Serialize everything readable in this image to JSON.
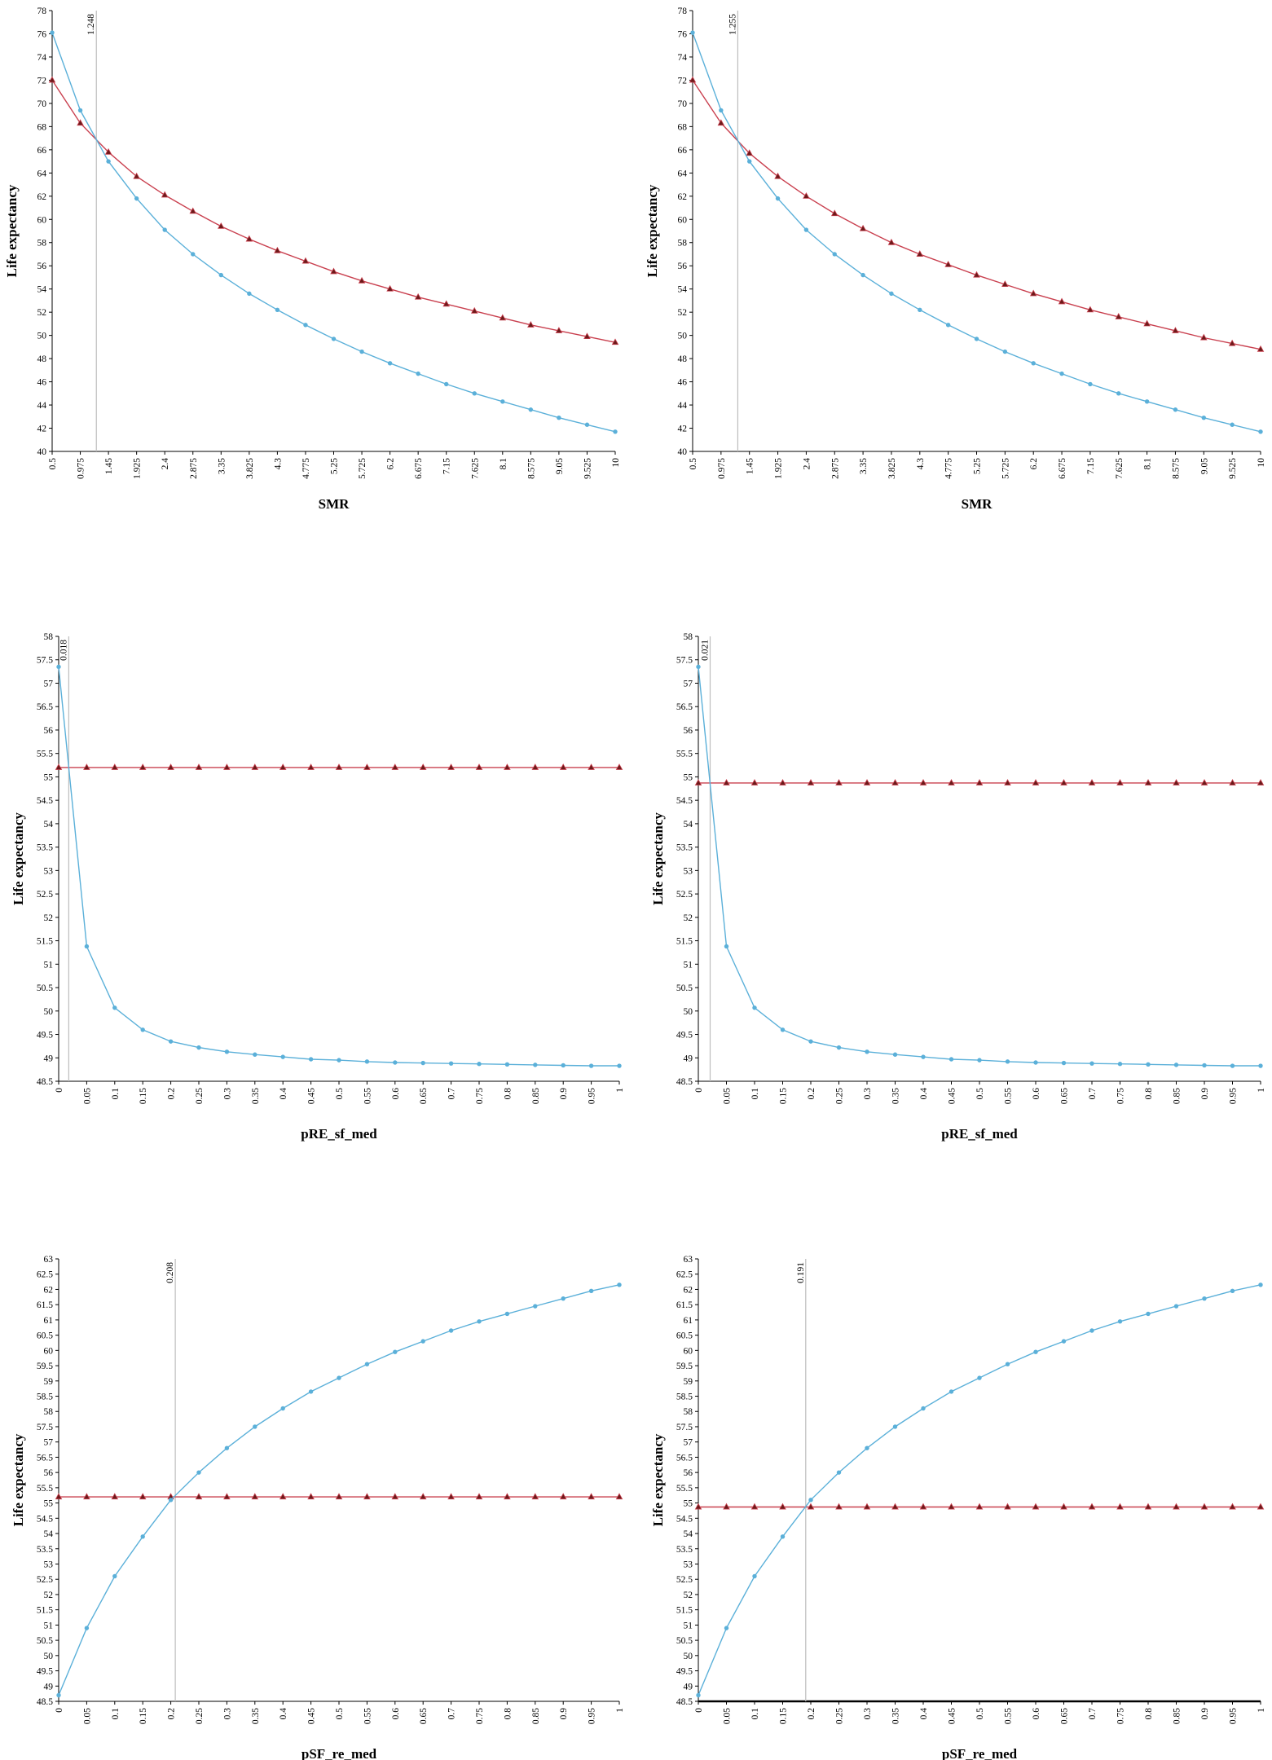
{
  "colors": {
    "series_blue": "#5bb0d9",
    "series_red": "#c9404f",
    "marker_red_fill": "#6b1a1a",
    "threshold_line": "#bdbdbd",
    "axis": "#000000"
  },
  "chart_data": [
    {
      "type": "line",
      "ylabel": "Life expectancy",
      "xlabel": "SMR",
      "x_ticks": [
        "0.5",
        "0.975",
        "1.45",
        "1.925",
        "2.4",
        "2.875",
        "3.35",
        "3.825",
        "4.3",
        "4.775",
        "5.25",
        "5.725",
        "6.2",
        "6.675",
        "7.15",
        "7.625",
        "8.1",
        "8.575",
        "9.05",
        "9.525",
        "10"
      ],
      "ylim": [
        40,
        78
      ],
      "y_tick_step": 2,
      "vline": {
        "x_index": 1.57,
        "label": "1.248"
      },
      "series": [
        {
          "values": [
            76.1,
            69.4,
            65.0,
            61.8,
            59.1,
            57.0,
            55.2,
            53.6,
            52.2,
            50.9,
            49.7,
            48.6,
            47.6,
            46.7,
            45.8,
            45.0,
            44.3,
            43.6,
            42.9,
            42.3,
            41.7
          ],
          "marker": "circle",
          "color": "#5bb0d9"
        },
        {
          "values": [
            72.0,
            68.3,
            65.8,
            63.7,
            62.1,
            60.7,
            59.4,
            58.3,
            57.3,
            56.4,
            55.5,
            54.7,
            54.0,
            53.3,
            52.7,
            52.1,
            51.5,
            50.9,
            50.4,
            49.9,
            49.4
          ],
          "marker": "triangle",
          "color": "#c9404f"
        }
      ]
    },
    {
      "type": "line",
      "ylabel": "Life expectancy",
      "xlabel": "SMR",
      "x_ticks": [
        "0.5",
        "0.975",
        "1.45",
        "1.925",
        "2.4",
        "2.875",
        "3.35",
        "3.825",
        "4.3",
        "4.775",
        "5.25",
        "5.725",
        "6.2",
        "6.675",
        "7.15",
        "7.625",
        "8.1",
        "8.575",
        "9.05",
        "9.525",
        "10"
      ],
      "ylim": [
        40,
        78
      ],
      "y_tick_step": 2,
      "vline": {
        "x_index": 1.59,
        "label": "1.255"
      },
      "series": [
        {
          "values": [
            76.1,
            69.4,
            65.0,
            61.8,
            59.1,
            57.0,
            55.2,
            53.6,
            52.2,
            50.9,
            49.7,
            48.6,
            47.6,
            46.7,
            45.8,
            45.0,
            44.3,
            43.6,
            42.9,
            42.3,
            41.7
          ],
          "marker": "circle",
          "color": "#5bb0d9"
        },
        {
          "values": [
            72.0,
            68.3,
            65.7,
            63.7,
            62.0,
            60.5,
            59.2,
            58.0,
            57.0,
            56.1,
            55.2,
            54.4,
            53.6,
            52.9,
            52.2,
            51.6,
            51.0,
            50.4,
            49.8,
            49.3,
            48.8
          ],
          "marker": "triangle",
          "color": "#c9404f"
        }
      ]
    },
    {
      "type": "line",
      "ylabel": "Life expectancy",
      "xlabel": "pRE_sf_med",
      "x_ticks": [
        "0",
        "0.05",
        "0.1",
        "0.15",
        "0.2",
        "0.25",
        "0.3",
        "0.35",
        "0.4",
        "0.45",
        "0.5",
        "0.55",
        "0.6",
        "0.65",
        "0.7",
        "0.75",
        "0.8",
        "0.85",
        "0.9",
        "0.95",
        "1"
      ],
      "ylim": [
        48.5,
        58
      ],
      "y_tick_step": 0.5,
      "vline": {
        "x_index": 0.36,
        "label": "0.018"
      },
      "series": [
        {
          "values": [
            57.35,
            51.38,
            50.07,
            49.6,
            49.35,
            49.22,
            49.13,
            49.07,
            49.02,
            48.97,
            48.95,
            48.92,
            48.9,
            48.89,
            48.88,
            48.87,
            48.86,
            48.85,
            48.84,
            48.83,
            48.83
          ],
          "marker": "circle",
          "color": "#5bb0d9"
        },
        {
          "values": [
            55.2,
            55.2,
            55.2,
            55.2,
            55.2,
            55.2,
            55.2,
            55.2,
            55.2,
            55.2,
            55.2,
            55.2,
            55.2,
            55.2,
            55.2,
            55.2,
            55.2,
            55.2,
            55.2,
            55.2,
            55.2
          ],
          "marker": "triangle",
          "color": "#c9404f"
        }
      ]
    },
    {
      "type": "line",
      "ylabel": "Life expectancy",
      "xlabel": "pRE_sf_med",
      "x_ticks": [
        "0",
        "0.05",
        "0.1",
        "0.15",
        "0.2",
        "0.25",
        "0.3",
        "0.35",
        "0.4",
        "0.45",
        "0.5",
        "0.55",
        "0.6",
        "0.65",
        "0.7",
        "0.75",
        "0.8",
        "0.85",
        "0.9",
        "0.95",
        "1"
      ],
      "ylim": [
        48.5,
        58
      ],
      "y_tick_step": 0.5,
      "vline": {
        "x_index": 0.42,
        "label": "0.021"
      },
      "series": [
        {
          "values": [
            57.35,
            51.38,
            50.07,
            49.6,
            49.35,
            49.22,
            49.13,
            49.07,
            49.02,
            48.97,
            48.95,
            48.92,
            48.9,
            48.89,
            48.88,
            48.87,
            48.86,
            48.85,
            48.84,
            48.83,
            48.83
          ],
          "marker": "circle",
          "color": "#5bb0d9"
        },
        {
          "values": [
            54.87,
            54.87,
            54.87,
            54.87,
            54.87,
            54.87,
            54.87,
            54.87,
            54.87,
            54.87,
            54.87,
            54.87,
            54.87,
            54.87,
            54.87,
            54.87,
            54.87,
            54.87,
            54.87,
            54.87,
            54.87
          ],
          "marker": "triangle",
          "color": "#c9404f"
        }
      ]
    },
    {
      "type": "line",
      "ylabel": "Life expectancy",
      "xlabel": "pSF_re_med",
      "x_ticks": [
        "0",
        "0.05",
        "0.1",
        "0.15",
        "0.2",
        "0.25",
        "0.3",
        "0.35",
        "0.4",
        "0.45",
        "0.5",
        "0.55",
        "0.6",
        "0.65",
        "0.7",
        "0.75",
        "0.8",
        "0.85",
        "0.9",
        "0.95",
        "1"
      ],
      "ylim": [
        48.5,
        63
      ],
      "y_tick_step": 0.5,
      "vline": {
        "x_index": 4.16,
        "label": "0.208"
      },
      "series": [
        {
          "values": [
            48.7,
            50.9,
            52.6,
            53.9,
            55.1,
            56.0,
            56.8,
            57.5,
            58.1,
            58.65,
            59.1,
            59.55,
            59.95,
            60.3,
            60.65,
            60.95,
            61.2,
            61.45,
            61.7,
            61.95,
            62.15
          ],
          "marker": "circle",
          "color": "#5bb0d9"
        },
        {
          "values": [
            55.2,
            55.2,
            55.2,
            55.2,
            55.2,
            55.2,
            55.2,
            55.2,
            55.2,
            55.2,
            55.2,
            55.2,
            55.2,
            55.2,
            55.2,
            55.2,
            55.2,
            55.2,
            55.2,
            55.2,
            55.2
          ],
          "marker": "triangle",
          "color": "#c9404f"
        }
      ]
    },
    {
      "type": "line",
      "ylabel": "Life expectancy",
      "xlabel": "pSF_re_med",
      "x_ticks": [
        "0",
        "0.05",
        "0.1",
        "0.15",
        "0.2",
        "0.25",
        "0.3",
        "0.35",
        "0.4",
        "0.45",
        "0.5",
        "0.55",
        "0.6",
        "0.65",
        "0.7",
        "0.75",
        "0.8",
        "0.85",
        "0.9",
        "0.95",
        "1"
      ],
      "ylim": [
        48.5,
        63
      ],
      "y_tick_step": 0.5,
      "vline": {
        "x_index": 3.82,
        "label": "0.191"
      },
      "series": [
        {
          "values": [
            48.7,
            50.9,
            52.6,
            53.9,
            55.1,
            56.0,
            56.8,
            57.5,
            58.1,
            58.65,
            59.1,
            59.55,
            59.95,
            60.3,
            60.65,
            60.95,
            61.2,
            61.45,
            61.7,
            61.95,
            62.15
          ],
          "marker": "circle",
          "color": "#5bb0d9"
        },
        {
          "values": [
            54.87,
            54.87,
            54.87,
            54.87,
            54.87,
            54.87,
            54.87,
            54.87,
            54.87,
            54.87,
            54.87,
            54.87,
            54.87,
            54.87,
            54.87,
            54.87,
            54.87,
            54.87,
            54.87,
            54.87,
            54.87
          ],
          "marker": "triangle",
          "color": "#c9404f"
        }
      ]
    }
  ]
}
